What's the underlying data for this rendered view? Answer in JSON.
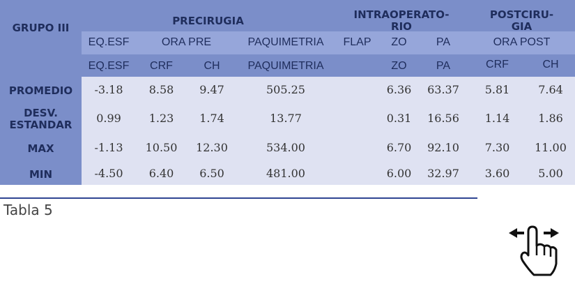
{
  "header": {
    "group": "GRUPO III",
    "groups": [
      [
        "PRECIRUGIA"
      ],
      [
        "INTRAOPERATO-",
        "RIO"
      ],
      [
        "POSTCIRU-",
        "GIA"
      ]
    ],
    "subgroups": [
      "EQ.ESF",
      "ORA PRE",
      "PAQUIMETRIA",
      "FLAP",
      "ZO",
      "PA",
      "ORA POST"
    ],
    "columns": [
      "EQ.ESF",
      "CRF",
      "CH",
      "PAQUIMETRIA",
      "ZO",
      "PA",
      "CRF",
      "CH"
    ]
  },
  "table": {
    "rows": [
      {
        "label": [
          "PROMEDIO"
        ],
        "values": [
          "-3.18",
          "8.58",
          "9.47",
          "505.25",
          "6.36",
          "63.37",
          "5.81",
          "7.64"
        ]
      },
      {
        "label": [
          "DESV.",
          "ESTANDAR"
        ],
        "values": [
          "0.99",
          "1.23",
          "1.74",
          "13.77",
          "0.31",
          "16.56",
          "1.14",
          "1.86"
        ]
      },
      {
        "label": [
          "MAX"
        ],
        "values": [
          "-1.13",
          "10.50",
          "12.30",
          "534.00",
          "6.70",
          "92.10",
          "7.30",
          "11.00"
        ]
      },
      {
        "label": [
          "MIN"
        ],
        "values": [
          "-4.50",
          "6.40",
          "6.50",
          "481.00",
          "6.00",
          "32.97",
          "3.60",
          "5.00"
        ]
      }
    ]
  },
  "caption": "Tabla 5"
}
